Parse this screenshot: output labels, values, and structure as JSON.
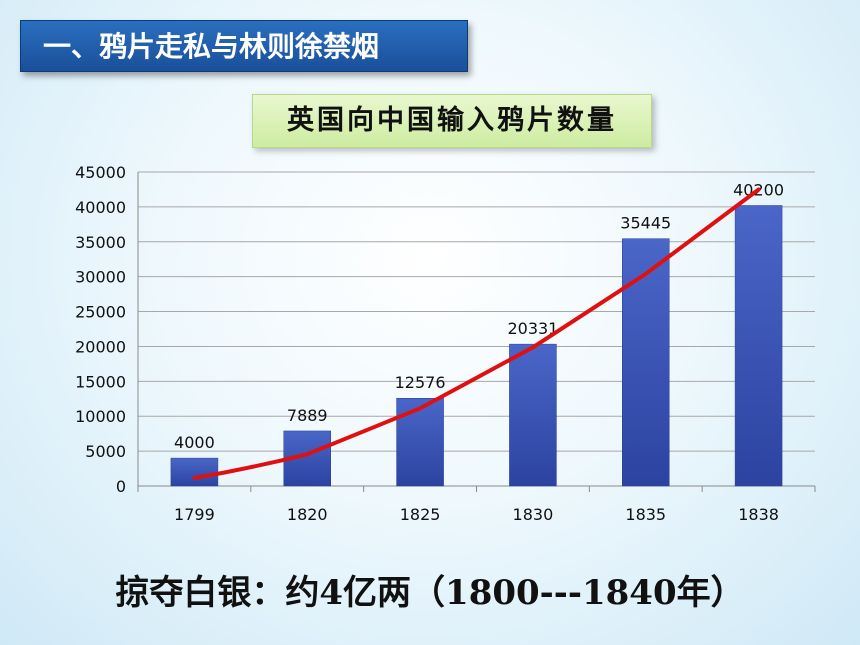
{
  "slide_title": "一、鸦片走私与林则徐禁烟",
  "caption": "掠夺白银：约4亿两（1800---1840年）",
  "chart_data": {
    "type": "bar",
    "title": "英国向中国输入鸦片数量",
    "categories": [
      "1799",
      "1820",
      "1825",
      "1830",
      "1835",
      "1838"
    ],
    "values": [
      4000,
      7889,
      12576,
      20331,
      35445,
      40200
    ],
    "data_labels": [
      "4000",
      "7889",
      "12576",
      "20331",
      "35445",
      "40200"
    ],
    "ylim": [
      0,
      45000
    ],
    "yticks": [
      0,
      5000,
      10000,
      15000,
      20000,
      25000,
      30000,
      35000,
      40000,
      45000
    ],
    "grid": true,
    "trendline": true,
    "colors": {
      "bar": "#3b55b5",
      "trendline": "#e01010"
    }
  }
}
